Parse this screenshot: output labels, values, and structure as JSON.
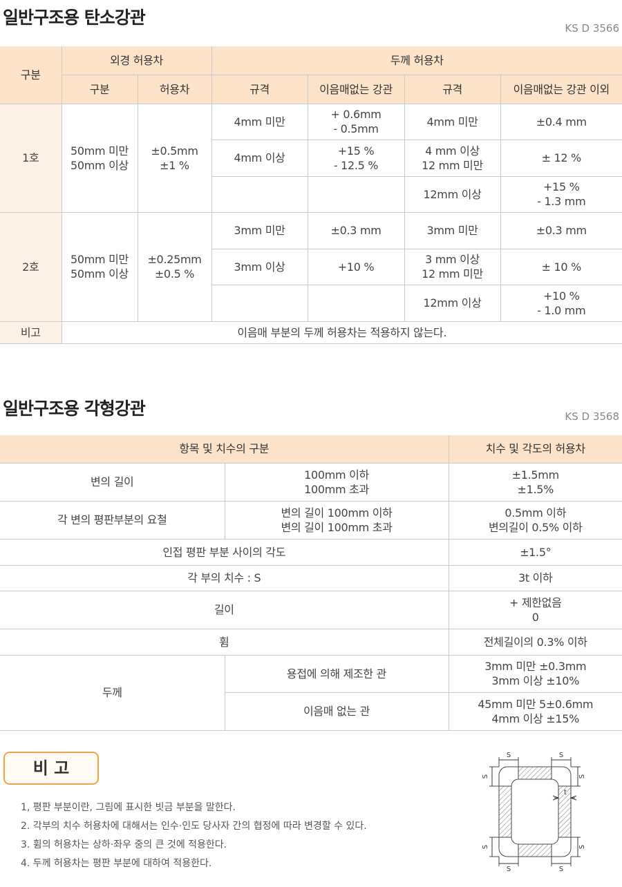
{
  "s1": {
    "title": "일반구조용 탄소강관",
    "code": "KS D 3566",
    "table": {
      "header": {
        "gubun": "구분",
        "od": "외경 허용차",
        "thickness": "두께 허용차",
        "sub": [
          "구분",
          "허용차",
          "규격",
          "이음매없는 강관",
          "규격",
          "이음매없는 강관 이외"
        ]
      },
      "rows": [
        {
          "name": "1호",
          "od_size": [
            "50mm 미만",
            "50mm 이상"
          ],
          "od_tol": [
            "±0.5mm",
            "±1 %"
          ],
          "seamless": [
            {
              "spec": [
                "4mm 미만"
              ],
              "tol": [
                "+ 0.6mm",
                "- 0.5mm"
              ]
            },
            {
              "spec": [
                "4mm 이상"
              ],
              "tol": [
                "+15 %",
                "- 12.5 %"
              ]
            }
          ],
          "other": [
            {
              "spec": [
                "4mm 미만"
              ],
              "tol": [
                "±0.4 mm"
              ]
            },
            {
              "spec": [
                "4 mm 이상",
                "12 mm 미만"
              ],
              "tol": [
                "± 12 %"
              ]
            },
            {
              "spec": [
                "12mm 이상"
              ],
              "tol": [
                "+15 %",
                "- 1.3 mm"
              ]
            }
          ]
        },
        {
          "name": "2호",
          "od_size": [
            "50mm 미만",
            "50mm 이상"
          ],
          "od_tol": [
            "±0.25mm",
            "±0.5 %"
          ],
          "seamless": [
            {
              "spec": [
                "3mm 미만"
              ],
              "tol": [
                "±0.3 mm"
              ]
            },
            {
              "spec": [
                "3mm 이상"
              ],
              "tol": [
                "+10 %"
              ]
            }
          ],
          "other": [
            {
              "spec": [
                "3mm 미만"
              ],
              "tol": [
                "±0.3 mm"
              ]
            },
            {
              "spec": [
                "3 mm 이상",
                "12 mm 미만"
              ],
              "tol": [
                "± 10 %"
              ]
            },
            {
              "spec": [
                "12mm 이상"
              ],
              "tol": [
                "+10 %",
                "- 1.0 mm"
              ]
            }
          ]
        }
      ],
      "note": {
        "label": "비고",
        "text": "이음매 부분의 두께 허용차는 적용하지 않는다."
      }
    }
  },
  "s2": {
    "title": "일반구조용 각형강관",
    "code": "KS D 3568",
    "table": {
      "header": [
        "항목 및 치수의 구분",
        "치수 및 각도의 허용차"
      ],
      "rows": [
        {
          "item": "변의 길이",
          "sub": [
            "100mm 이하",
            "100mm 초과"
          ],
          "tol": [
            "±1.5mm",
            "±1.5%"
          ]
        },
        {
          "item": "각 변의 평판부분의 요철",
          "sub": [
            "변의 길이 100mm 이하",
            "변의 길이 100mm 초과"
          ],
          "tol": [
            "0.5mm 이하",
            "변의길이 0.5% 이하"
          ]
        },
        {
          "item": "인접 평판 부분 사이의 각도",
          "tol": [
            "±1.5°"
          ]
        },
        {
          "item": "각 부의 치수 : S",
          "tol": [
            "3t 이하"
          ]
        },
        {
          "item": "길이",
          "tol": [
            "+ 제한없음",
            "0"
          ]
        },
        {
          "item": "휨",
          "tol": [
            "전체길이의 0.3% 이하"
          ]
        },
        {
          "item": "두께",
          "sub": [
            "용접에 의해 제조한 관"
          ],
          "tol": [
            "3mm 미만 ±0.3mm",
            "3mm 이상 ±10%"
          ]
        },
        {
          "sub": [
            "이음매 없는 관"
          ],
          "tol": [
            "45mm 미만 5±0.6mm",
            "4mm 이상 ±15%"
          ]
        }
      ]
    },
    "notes": {
      "label": "비 고",
      "items": [
        "1, 평판 부분이란, 그림에 표시한 빗금 부분을 말한다.",
        "2. 각부의 치수 허용차에 대해서는 인수·인도 당사자 간의 협정에 따라 변경할 수 있다.",
        "3. 휨의 허용차는 상하·좌우 중의 큰 것에 적용한다.",
        "4. 두께 허용차는 평판 부분에 대하여 적용한다."
      ]
    },
    "diagram": {
      "s_labels": [
        "S",
        "S",
        "S",
        "S",
        "S",
        "S",
        "S",
        "S"
      ],
      "t_label": "t"
    }
  }
}
